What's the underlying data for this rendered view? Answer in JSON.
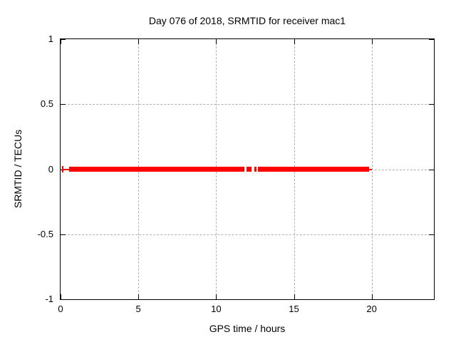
{
  "colors": {
    "background": "#ffffff",
    "border": "#000000",
    "grid": "#b0b0b0",
    "text": "#000000",
    "series_red": "#ff0000"
  },
  "chart_data": {
    "type": "line",
    "title": "Day 076 of 2018, SRMTID for receiver mac1",
    "xlabel": "GPS time / hours",
    "ylabel": "SRMTID / TECUs",
    "xlim": [
      0,
      24
    ],
    "ylim": [
      -1,
      1
    ],
    "grid": true,
    "legend_position": "none",
    "xticks": [
      {
        "v": 0,
        "label": "0"
      },
      {
        "v": 5,
        "label": "5"
      },
      {
        "v": 10,
        "label": "10"
      },
      {
        "v": 15,
        "label": "15"
      },
      {
        "v": 20,
        "label": "20"
      }
    ],
    "yticks": [
      {
        "v": -1,
        "label": "-1"
      },
      {
        "v": -0.5,
        "label": "-0.5"
      },
      {
        "v": 0,
        "label": "0"
      },
      {
        "v": 0.5,
        "label": "0.5"
      },
      {
        "v": 1,
        "label": "1"
      }
    ],
    "series": [
      {
        "name": "SRMTID",
        "color": "#ff0000",
        "style": "dense points with errorbars forming a thick horizontal band",
        "y_value": 0,
        "thick_segments_hours": [
          [
            0.55,
            11.82
          ],
          [
            11.97,
            12.29
          ],
          [
            12.46,
            12.61
          ],
          [
            12.69,
            19.85
          ]
        ],
        "thin_segments_hours": [
          [
            0.14,
            0.55
          ],
          [
            19.85,
            20.03
          ]
        ],
        "marker_hours": [
          0.14
        ]
      }
    ]
  }
}
